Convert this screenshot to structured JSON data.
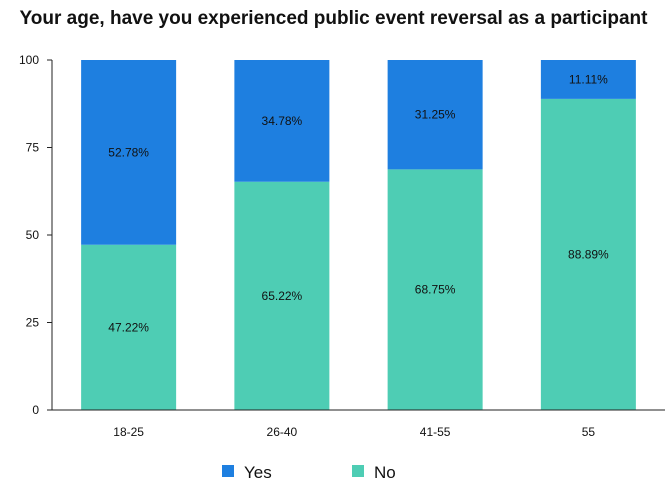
{
  "chart_data": {
    "type": "bar",
    "stacked": true,
    "title": "Your age, have you experienced public event reversal as a participant",
    "xlabel": "",
    "ylabel": "",
    "categories": [
      "18-25",
      "26-40",
      "41-55",
      "55"
    ],
    "ylim": [
      0,
      100
    ],
    "yticks": [
      0,
      25,
      50,
      75,
      100
    ],
    "series": [
      {
        "name": "No",
        "values": [
          47.22,
          65.22,
          68.75,
          88.89
        ],
        "labels": [
          "47.22%",
          "65.22%",
          "68.75%",
          "88.89%"
        ],
        "color": "#4ecdb4"
      },
      {
        "name": "Yes",
        "values": [
          52.78,
          34.78,
          31.25,
          11.11
        ],
        "labels": [
          "52.78%",
          "34.78%",
          "31.25%",
          "11.11%"
        ],
        "color": "#1e7fe0"
      }
    ],
    "legend": {
      "placement": "bottom",
      "order": [
        "Yes",
        "No"
      ]
    },
    "grid": false
  }
}
